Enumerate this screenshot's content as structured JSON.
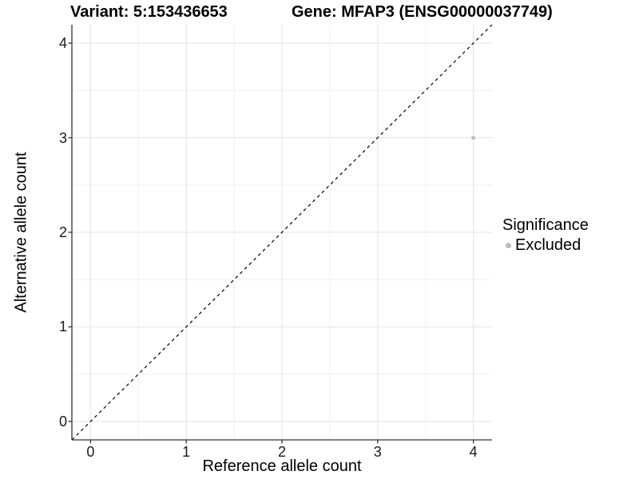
{
  "chart_data": {
    "type": "scatter",
    "title_variant": "Variant: 5:153436653",
    "title_gene": "Gene: MFAP3 (ENSG00000037749)",
    "xlabel": "Reference allele count",
    "ylabel": "Alternative allele count",
    "xlim": [
      -0.195,
      4.195
    ],
    "ylim": [
      -0.195,
      4.195
    ],
    "x_major_ticks": [
      0,
      1,
      2,
      3,
      4
    ],
    "y_major_ticks": [
      0,
      1,
      2,
      3,
      4
    ],
    "x_minor_ticks": [
      0.5,
      1.5,
      2.5,
      3.5
    ],
    "y_minor_ticks": [
      0.5,
      1.5,
      2.5,
      3.5
    ],
    "grid": true,
    "reference_line": {
      "type": "abline",
      "slope": 1,
      "intercept": 0,
      "style": "dashed"
    },
    "series": [
      {
        "name": "Excluded",
        "color": "#bdbdbd",
        "points": [
          {
            "x": 4,
            "y": 3
          }
        ]
      }
    ],
    "legend": {
      "title": "Significance",
      "position": "right",
      "entries": [
        {
          "label": "Excluded",
          "color": "#bdbdbd",
          "marker": "dot-icon"
        }
      ]
    }
  },
  "colors": {
    "background": "#ffffff",
    "grid_major": "#e3e3e3",
    "grid_minor": "#f0f0f0",
    "axis_line": "#333333",
    "reference_line": "#000000",
    "tick_text": "#1a1a1a",
    "title_text": "#000000"
  }
}
